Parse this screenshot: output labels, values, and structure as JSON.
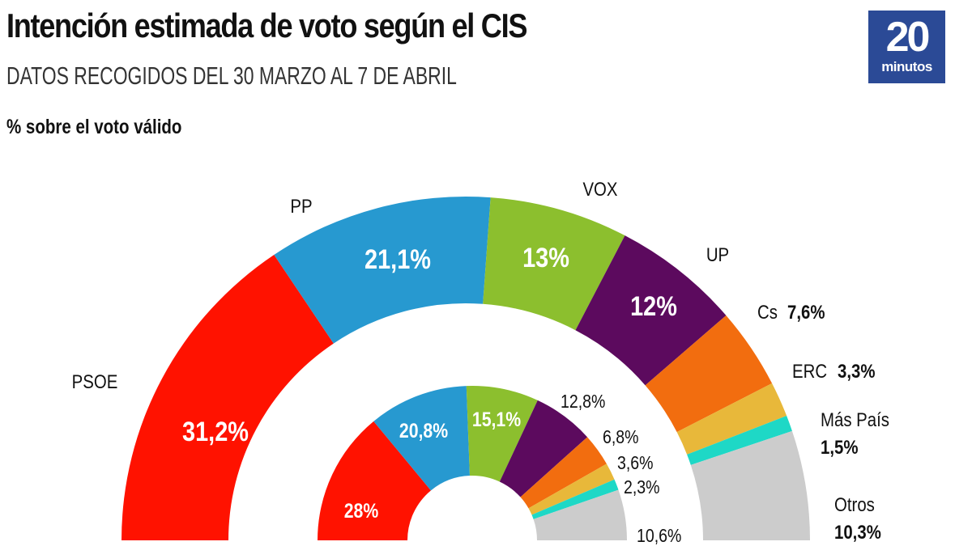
{
  "header": {
    "title": "Intención estimada de voto según el CIS",
    "subtitle": "DATOS RECOGIDOS DEL 30 MARZO AL 7 DE ABRIL",
    "unit_label": "% sobre el voto válido"
  },
  "logo": {
    "number": "20",
    "word": "minutos",
    "color": "#2b4a96"
  },
  "chart_data": {
    "type": "pie",
    "subtype": "nested-semicircle-donut",
    "title": "Intención estimada de voto según el CIS",
    "subtitle": "DATOS RECOGIDOS DEL 30 MARZO AL 7 DE ABRIL",
    "unit": "% sobre el voto válido",
    "categories": [
      "PSOE",
      "PP",
      "VOX",
      "UP",
      "Cs",
      "ERC",
      "Más País",
      "Otros"
    ],
    "colors": [
      "#ff1200",
      "#2799d0",
      "#8cbf2e",
      "#5c0a5e",
      "#f26d0f",
      "#e8b83a",
      "#1ed8c6",
      "#cccccc"
    ],
    "series": [
      {
        "name": "outer",
        "values": [
          31.2,
          21.1,
          13,
          12,
          7.6,
          3.3,
          1.5,
          10.3
        ],
        "labels": [
          "31,2%",
          "21,1%",
          "13%",
          "12%",
          "7,6%",
          "3,3%",
          "1,5%",
          "10,3%"
        ]
      },
      {
        "name": "inner",
        "values": [
          28,
          20.8,
          15.1,
          12.8,
          6.8,
          3.6,
          2.3,
          10.6
        ],
        "labels": [
          "28%",
          "20,8%",
          "15,1%",
          "12,8%",
          "6,8%",
          "3,6%",
          "2,3%",
          "10,6%"
        ]
      }
    ],
    "party_labels": [
      "PSOE",
      "PP",
      "VOX",
      "UP",
      "Cs",
      "ERC",
      "Más País",
      "Otros"
    ]
  }
}
